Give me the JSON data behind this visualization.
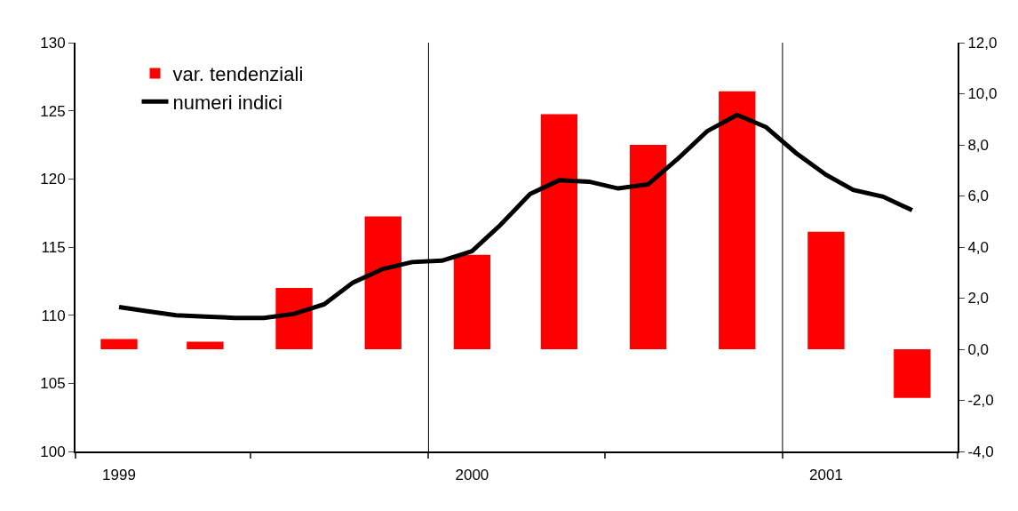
{
  "chart_data": {
    "type": "bar",
    "legend": "top left",
    "x": [
      "1999-02-15",
      "1999-05-15",
      "1999-08-15",
      "1999-11-15",
      "2000-02-15",
      "2000-05-15",
      "2000-08-15",
      "2000-11-15",
      "2001-02-15",
      "2001-05-15"
    ],
    "series": [
      {
        "name": "var. tendenziali",
        "color": "#ff0000",
        "axis": "y2",
        "values": [
          0.4,
          0.3,
          2.4,
          5.2,
          3.7,
          9.2,
          8.0,
          10.1,
          4.6,
          -1.9
        ]
      },
      {
        "name": "numeri indici",
        "type": "line",
        "color": "#000000",
        "marker": "none",
        "line_style": "solid",
        "x": [
          "1999-02-15",
          "1999-03-15",
          "1999-04-15",
          "1999-05-15",
          "1999-06-15",
          "1999-07-15",
          "1999-08-15",
          "1999-09-15",
          "1999-10-15",
          "1999-11-15",
          "1999-12-15",
          "2000-01-15",
          "2000-02-15",
          "2000-03-15",
          "2000-04-15",
          "2000-05-15",
          "2000-06-15",
          "2000-07-15",
          "2000-08-15",
          "2000-09-15",
          "2000-10-15",
          "2000-11-15",
          "2000-12-15",
          "2001-01-15",
          "2001-02-15",
          "2001-03-15",
          "2001-04-15",
          "2001-05-15"
        ],
        "values": [
          110.6,
          110.3,
          110.0,
          109.9,
          109.8,
          109.8,
          110.1,
          110.8,
          112.4,
          113.4,
          113.9,
          114.0,
          114.7,
          116.6,
          118.9,
          119.9,
          119.8,
          119.3,
          119.6,
          121.5,
          123.5,
          124.7,
          123.8,
          121.9,
          120.3,
          119.2,
          118.7,
          117.7
        ]
      }
    ],
    "xlim": [
      "1999-01-01",
      "2001-07-01"
    ],
    "xticks": [
      {
        "value": "1999-01-01",
        "label": null
      },
      {
        "value": "1999-07-01",
        "label": null
      },
      {
        "value": "2000-01-01",
        "label": null
      },
      {
        "value": "2000-07-01",
        "label": null
      },
      {
        "value": "2001-01-01",
        "label": null
      },
      {
        "value": "2001-07-01",
        "label": null
      },
      {
        "value": "1999-02-15",
        "label": "1999"
      },
      {
        "value": "2000-02-15",
        "label": "2000"
      },
      {
        "value": "2001-02-15",
        "label": "2001"
      }
    ],
    "ylim": [
      100,
      130
    ],
    "yticks": [
      100,
      105,
      110,
      115,
      120,
      125,
      130
    ],
    "y2lim": [
      -4,
      12
    ],
    "y2ticks": [
      {
        "value": -4,
        "label": "-4,0"
      },
      {
        "value": -2,
        "label": "-2,0"
      },
      {
        "value": 0,
        "label": "0,0"
      },
      {
        "value": 2,
        "label": "2,0"
      },
      {
        "value": 4,
        "label": "4,0"
      },
      {
        "value": 6,
        "label": "6,0"
      },
      {
        "value": 8,
        "label": "8,0"
      },
      {
        "value": 10,
        "label": "10,0"
      },
      {
        "value": 12,
        "label": "12,0"
      }
    ],
    "ref_lines": [
      {
        "axis": "x",
        "value": "2000-01-01",
        "label": null,
        "color": "#000000"
      },
      {
        "axis": "x",
        "value": "2001-01-01",
        "label": null,
        "color": "#000000"
      }
    ]
  }
}
